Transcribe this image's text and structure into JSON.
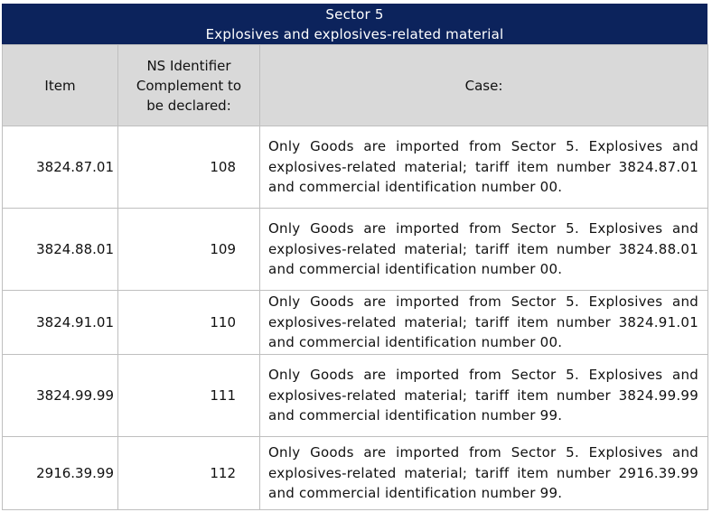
{
  "header": {
    "sector": "Sector 5",
    "subtitle": "Explosives and explosives-related material"
  },
  "columns": {
    "item": "Item",
    "ns_identifier": "NS Identifier Complement to be declared:",
    "case": "Case:"
  },
  "rows": [
    {
      "item": "3824.87.01",
      "ns": "108",
      "case": "Only Goods are imported from Sector 5. Explosives and explosives-related material; tariff item number 3824.87.01 and commercial identification number 00."
    },
    {
      "item": "3824.88.01",
      "ns": "109",
      "case": "Only Goods are imported from Sector 5. Explosives and explosives-related material; tariff item number 3824.88.01 and commercial identification number 00."
    },
    {
      "item": "3824.91.01",
      "ns": "110",
      "case": "Only Goods are imported from Sector 5. Explosives and explosives-related material; tariff item number 3824.91.01 and commercial identification number 00."
    },
    {
      "item": "3824.99.99",
      "ns": "111",
      "case": "Only Goods are imported from Sector 5. Explosives and explosives-related material; tariff item number 3824.99.99 and commercial identification number 99."
    },
    {
      "item": "2916.39.99",
      "ns": "112",
      "case": "Only Goods are imported from Sector 5. Explosives and explosives-related material; tariff item number 2916.39.99 and commercial identification number 99."
    }
  ],
  "colors": {
    "banner_bg": "#0c235c",
    "banner_text": "#ffffff",
    "header_bg": "#d9d9d9",
    "border": "#bfbfbf"
  }
}
